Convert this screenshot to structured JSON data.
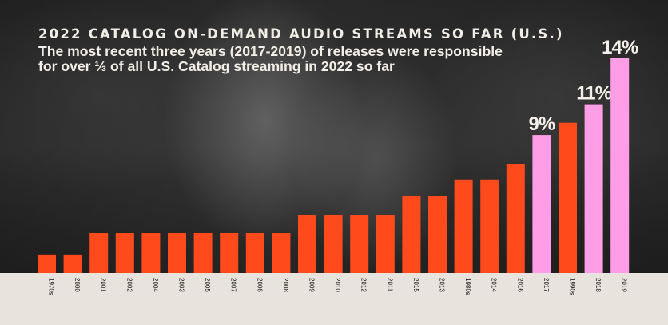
{
  "chart_data": {
    "type": "bar",
    "title": "2022 CATALOG ON-DEMAND AUDIO STREAMS SO FAR (U.S.)",
    "subtitle": "The most recent three years (2017-2019) of releases were responsible for over ⅓ of all U.S. Catalog streaming in 2022 so far",
    "xlabel": "",
    "ylabel": "",
    "categories": [
      "1970s",
      "2000",
      "2001",
      "2002",
      "2004",
      "2003",
      "2005",
      "2007",
      "2006",
      "2008",
      "2009",
      "2010",
      "2012",
      "2011",
      "2015",
      "2013",
      "1980s",
      "2014",
      "2016",
      "2017",
      "1990s",
      "2018",
      "2019"
    ],
    "values": [
      1.2,
      1.2,
      2.6,
      2.6,
      2.6,
      2.6,
      2.6,
      2.6,
      2.6,
      2.6,
      3.8,
      3.8,
      3.8,
      3.8,
      5.0,
      5.0,
      6.1,
      6.1,
      7.1,
      9.0,
      9.8,
      11.0,
      14.0
    ],
    "highlighted": [
      "2017",
      "2018",
      "2019"
    ],
    "data_labels": [
      {
        "category": "2017",
        "text": "9%"
      },
      {
        "category": "2018",
        "text": "11%"
      },
      {
        "category": "2019",
        "text": "14%"
      }
    ],
    "ylim": [
      0,
      14
    ],
    "grid": false,
    "colors": {
      "base": "#ff4a1c",
      "highlight": "#ff9ee6",
      "axis_strip": "#e8e3dc"
    }
  }
}
